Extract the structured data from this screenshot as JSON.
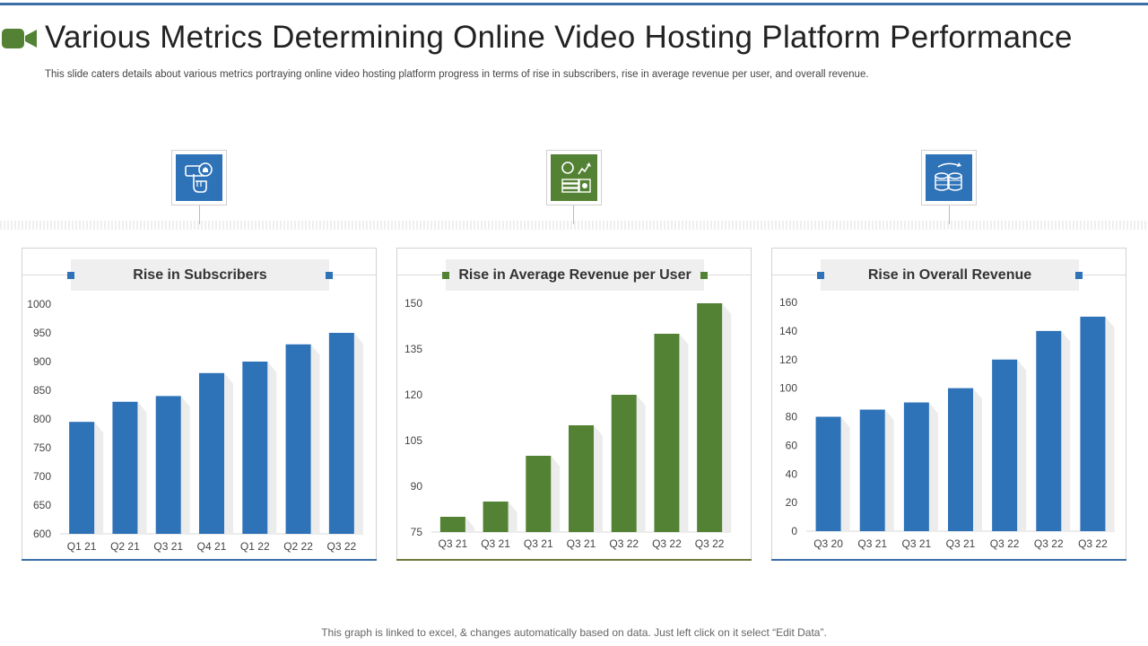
{
  "header": {
    "title": "Various Metrics Determining Online Video Hosting Platform Performance",
    "subtitle": "This slide caters details about various metrics portraying online video hosting platform progress in terms of rise in subscribers, rise in average revenue per user, and overall revenue."
  },
  "icons": [
    "hand-bell-icon",
    "money-growth-icon",
    "coins-growth-icon"
  ],
  "footer": {
    "note": "This graph is linked to excel, & changes automatically based on data. Just left click on it select “Edit Data”."
  },
  "colors": {
    "blue": "#2e72b8",
    "green": "#548235",
    "accent_rule": "#3a6ea5"
  },
  "chart_data": [
    {
      "type": "bar",
      "title": "Rise in Subscribers",
      "color": "#2e72b8",
      "categories": [
        "Q1 21",
        "Q2 21",
        "Q3 21",
        "Q4 21",
        "Q1 22",
        "Q2 22",
        "Q3 22"
      ],
      "values": [
        795,
        830,
        840,
        880,
        900,
        930,
        950
      ],
      "ylim": [
        600,
        1000
      ],
      "yticks": [
        600,
        650,
        700,
        750,
        800,
        850,
        900,
        950,
        1000
      ]
    },
    {
      "type": "bar",
      "title": "Rise in Average Revenue per User",
      "color": "#548235",
      "categories": [
        "Q3 21",
        "Q3 21",
        "Q3 21",
        "Q3 21",
        "Q3 22",
        "Q3 22",
        "Q3 22"
      ],
      "values": [
        80,
        85,
        100,
        110,
        120,
        140,
        150
      ],
      "ylim": [
        75,
        150
      ],
      "yticks": [
        75,
        90,
        105,
        120,
        135,
        150
      ]
    },
    {
      "type": "bar",
      "title": "Rise in Overall Revenue",
      "color": "#2e72b8",
      "categories": [
        "Q3 20",
        "Q3 21",
        "Q3 21",
        "Q3 21",
        "Q3 22",
        "Q3 22",
        "Q3 22"
      ],
      "values": [
        80,
        85,
        90,
        100,
        120,
        140,
        150
      ],
      "ylim": [
        0,
        160
      ],
      "yticks": [
        0,
        20,
        40,
        60,
        80,
        100,
        120,
        140,
        160
      ]
    }
  ]
}
